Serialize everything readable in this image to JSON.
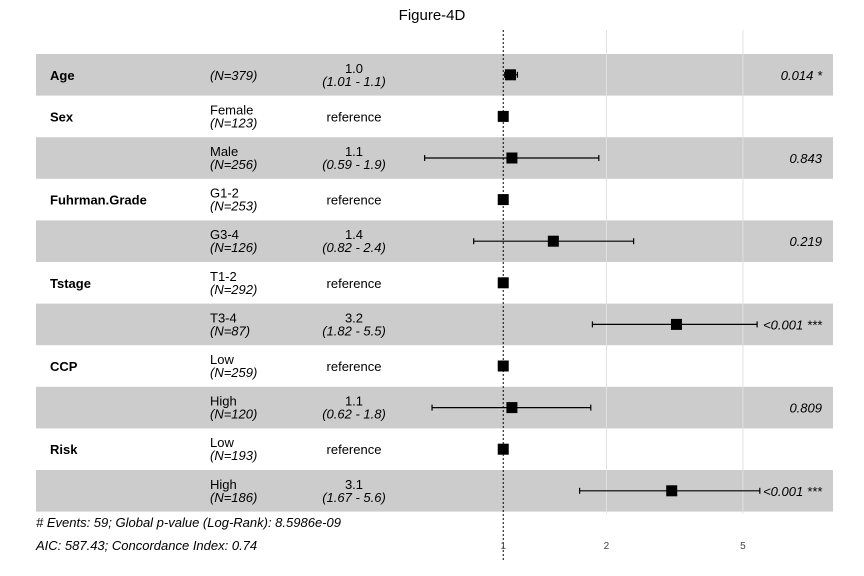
{
  "chart_data": {
    "type": "forest",
    "title": "Figure-4D",
    "x_scale": "log",
    "reference_value": 1,
    "x_ticks": [
      "1",
      "2",
      "5"
    ],
    "rows": [
      {
        "variable": "Age",
        "level": "",
        "n": "(N=379)",
        "estimate": "1.0",
        "ci": "(1.01 - 1.1)",
        "p": "0.014 *",
        "hr": 1.05,
        "lo": 1.01,
        "hi": 1.1,
        "shaded": true
      },
      {
        "variable": "Sex",
        "level": "Female",
        "n": "(N=123)",
        "estimate": "reference",
        "ci": "",
        "p": "",
        "hr": 1,
        "lo": null,
        "hi": null,
        "shaded": false
      },
      {
        "variable": "",
        "level": "Male",
        "n": "(N=256)",
        "estimate": "1.1",
        "ci": "(0.59 - 1.9)",
        "p": "0.843",
        "hr": 1.06,
        "lo": 0.59,
        "hi": 1.9,
        "shaded": true
      },
      {
        "variable": "Fuhrman.Grade",
        "level": "G1-2",
        "n": "(N=253)",
        "estimate": "reference",
        "ci": "",
        "p": "",
        "hr": 1,
        "lo": null,
        "hi": null,
        "shaded": false
      },
      {
        "variable": "",
        "level": "G3-4",
        "n": "(N=126)",
        "estimate": "1.4",
        "ci": "(0.82 - 2.4)",
        "p": "0.219",
        "hr": 1.4,
        "lo": 0.82,
        "hi": 2.4,
        "shaded": true
      },
      {
        "variable": "Tstage",
        "level": "T1-2",
        "n": "(N=292)",
        "estimate": "reference",
        "ci": "",
        "p": "",
        "hr": 1,
        "lo": null,
        "hi": null,
        "shaded": false
      },
      {
        "variable": "",
        "level": "T3-4",
        "n": "(N=87)",
        "estimate": "3.2",
        "ci": "(1.82 - 5.5)",
        "p": "<0.001 ***",
        "hr": 3.2,
        "lo": 1.82,
        "hi": 5.5,
        "shaded": true
      },
      {
        "variable": "CCP",
        "level": "Low",
        "n": "(N=259)",
        "estimate": "reference",
        "ci": "",
        "p": "",
        "hr": 1,
        "lo": null,
        "hi": null,
        "shaded": false
      },
      {
        "variable": "",
        "level": "High",
        "n": "(N=120)",
        "estimate": "1.1",
        "ci": "(0.62 - 1.8)",
        "p": "0.809",
        "hr": 1.06,
        "lo": 0.62,
        "hi": 1.8,
        "shaded": true
      },
      {
        "variable": "Risk",
        "level": "Low",
        "n": "(N=193)",
        "estimate": "reference",
        "ci": "",
        "p": "",
        "hr": 1,
        "lo": null,
        "hi": null,
        "shaded": false
      },
      {
        "variable": "",
        "level": "High",
        "n": "(N=186)",
        "estimate": "3.1",
        "ci": "(1.67 - 5.6)",
        "p": "<0.001 ***",
        "hr": 3.1,
        "lo": 1.67,
        "hi": 5.6,
        "shaded": true
      }
    ],
    "footnotes": [
      "# Events: 59; Global p-value (Log-Rank): 8.5986e-09",
      "AIC: 587.43; Concordance Index: 0.74"
    ],
    "colors": {
      "band": "#cccccc",
      "point": "#000000",
      "grid": "#e0e0e0"
    }
  }
}
